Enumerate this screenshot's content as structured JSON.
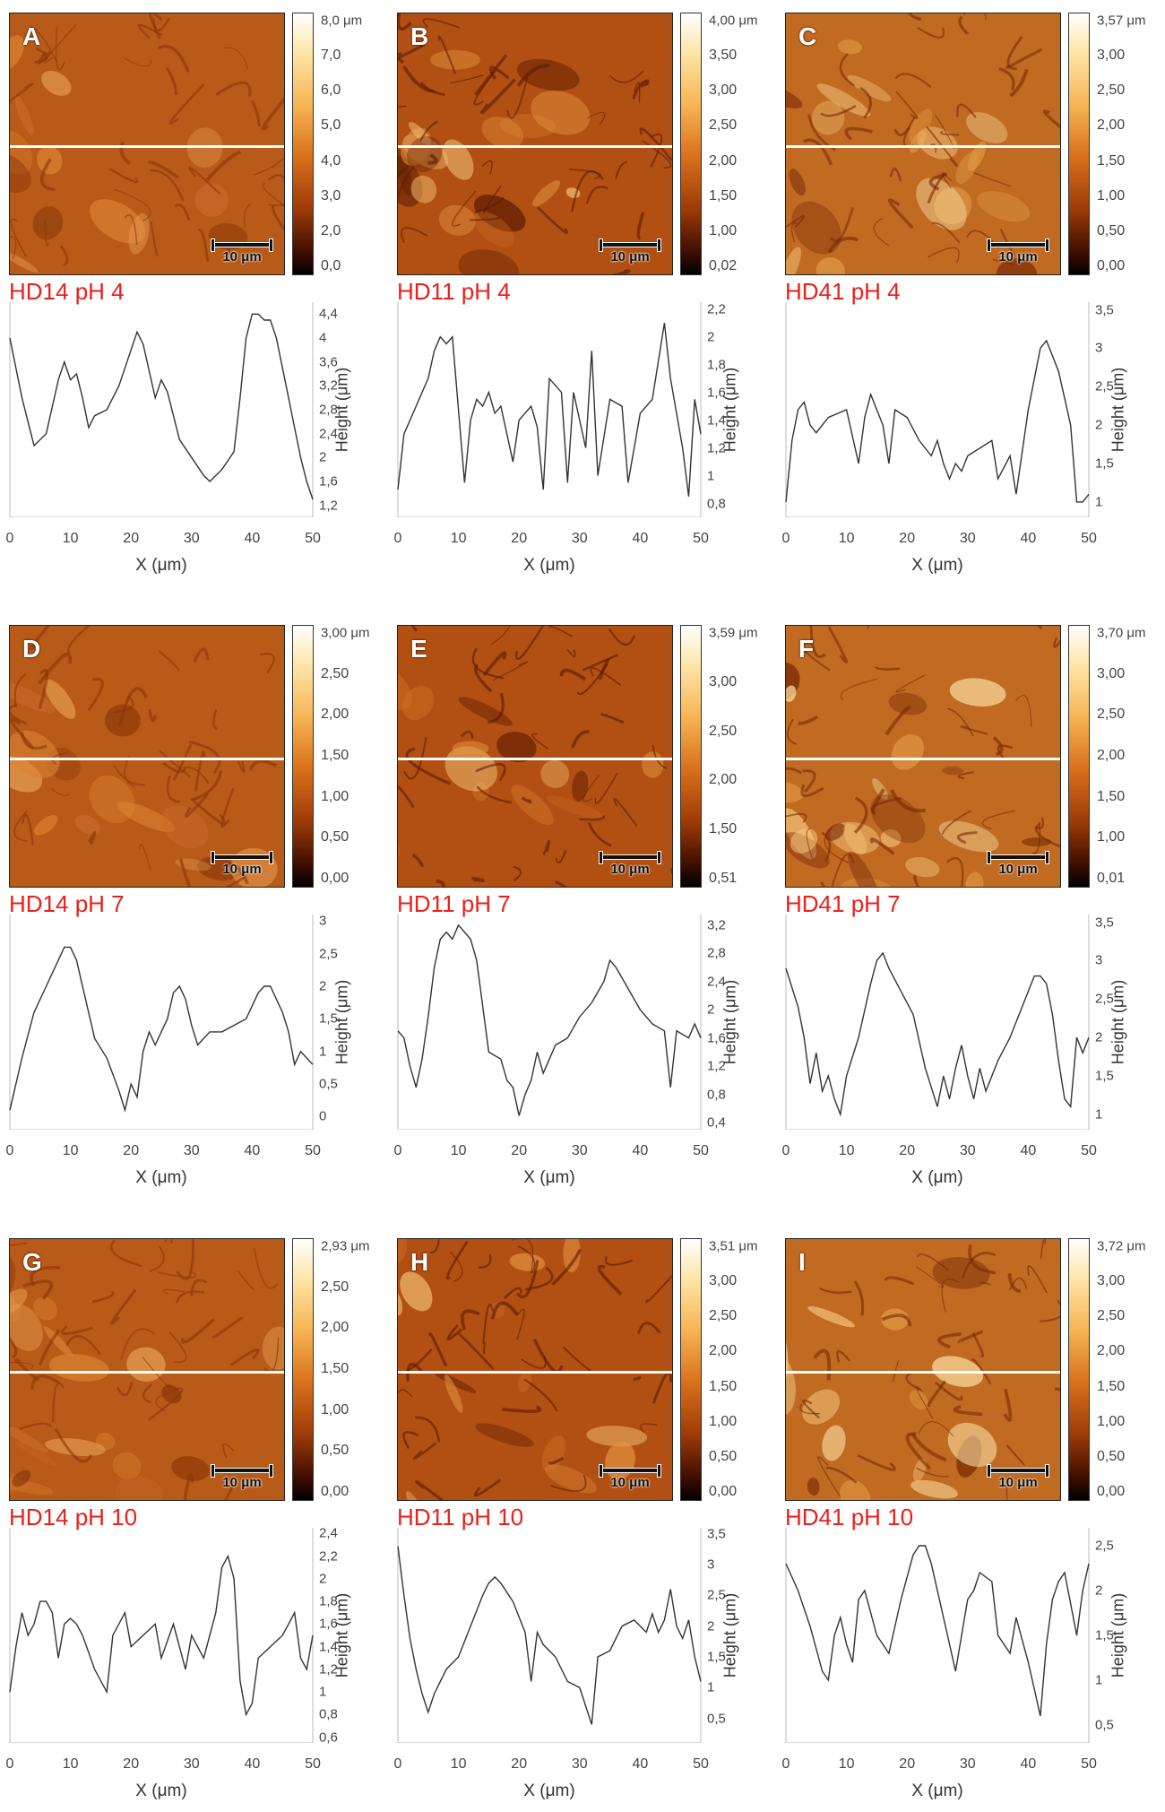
{
  "figure": {
    "scale_bar_label": "10 μm",
    "xlabel": "X (μm)",
    "ylabel": "Height (μm)",
    "x_ticks": [
      "0",
      "10",
      "20",
      "30",
      "40",
      "50"
    ]
  },
  "chart_data": [
    {
      "type": "line",
      "letter": "A",
      "title": "HD14 pH 4",
      "cbar": [
        "8,0 μm",
        "7,0",
        "6,0",
        "5,0",
        "4,0",
        "3,0",
        "2,0",
        "0,0"
      ],
      "yticks": [
        "4,4",
        "4",
        "3,6",
        "3,2",
        "2,8",
        "2,4",
        "2",
        "1,6",
        "1,2"
      ],
      "ylim": [
        1.0,
        4.6
      ],
      "x": [
        0,
        2,
        4,
        6,
        8,
        9,
        10,
        11,
        12,
        13,
        14,
        16,
        18,
        20,
        21,
        22,
        24,
        25,
        26,
        28,
        30,
        32,
        33,
        35,
        37,
        38,
        39,
        40,
        41,
        42,
        43,
        44,
        45,
        46,
        47,
        48,
        49,
        50
      ],
      "y": [
        4.0,
        3.0,
        2.2,
        2.4,
        3.3,
        3.6,
        3.3,
        3.4,
        3.0,
        2.5,
        2.7,
        2.8,
        3.2,
        3.8,
        4.1,
        3.9,
        3.0,
        3.3,
        3.1,
        2.3,
        2.0,
        1.7,
        1.6,
        1.8,
        2.1,
        3.0,
        4.0,
        4.4,
        4.4,
        4.3,
        4.3,
        4.0,
        3.5,
        3.0,
        2.5,
        2.0,
        1.6,
        1.3
      ],
      "xlabel": "X (μm)",
      "ylabel": "Height (μm)"
    },
    {
      "type": "line",
      "letter": "B",
      "title": "HD11 pH 4",
      "cbar": [
        "4,00 μm",
        "3,50",
        "3,00",
        "2,50",
        "2,00",
        "1,50",
        "1,00",
        "0,02"
      ],
      "yticks": [
        "2,2",
        "2",
        "1,8",
        "1,6",
        "1,4",
        "1,2",
        "1",
        "0,8"
      ],
      "ylim": [
        0.7,
        2.25
      ],
      "x": [
        0,
        1,
        3,
        4,
        5,
        6,
        7,
        8,
        9,
        11,
        12,
        13,
        14,
        15,
        16,
        17,
        19,
        20,
        22,
        23,
        24,
        25,
        27,
        28,
        29,
        31,
        32,
        33,
        35,
        37,
        38,
        40,
        42,
        44,
        45,
        47,
        48,
        49,
        50
      ],
      "y": [
        0.9,
        1.3,
        1.5,
        1.6,
        1.7,
        1.9,
        2.0,
        1.95,
        2.0,
        0.95,
        1.4,
        1.55,
        1.5,
        1.6,
        1.45,
        1.5,
        1.1,
        1.4,
        1.5,
        1.35,
        0.9,
        1.7,
        1.6,
        0.95,
        1.6,
        1.2,
        1.9,
        1.0,
        1.55,
        1.5,
        0.95,
        1.45,
        1.55,
        2.1,
        1.7,
        1.2,
        0.85,
        1.55,
        1.3
      ],
      "xlabel": "X (μm)",
      "ylabel": "Height (μm)"
    },
    {
      "type": "line",
      "letter": "C",
      "title": "HD41 pH 4",
      "cbar": [
        "3,57 μm",
        "3,00",
        "2,50",
        "2,00",
        "1,50",
        "1,00",
        "0,50",
        "0,00"
      ],
      "yticks": [
        "3,5",
        "3",
        "2,5",
        "2",
        "1,5",
        "1"
      ],
      "ylim": [
        0.8,
        3.6
      ],
      "x": [
        0,
        1,
        2,
        3,
        4,
        5,
        7,
        10,
        12,
        13,
        14,
        16,
        17,
        18,
        20,
        22,
        24,
        25,
        26,
        27,
        28,
        29,
        30,
        32,
        34,
        35,
        37,
        38,
        40,
        42,
        43,
        45,
        47,
        48,
        49,
        50
      ],
      "y": [
        1.0,
        1.8,
        2.2,
        2.3,
        2.0,
        1.9,
        2.1,
        2.2,
        1.5,
        2.1,
        2.4,
        2.0,
        1.5,
        2.2,
        2.1,
        1.8,
        1.6,
        1.8,
        1.5,
        1.3,
        1.5,
        1.4,
        1.6,
        1.7,
        1.8,
        1.3,
        1.6,
        1.1,
        2.2,
        3.0,
        3.1,
        2.7,
        2.0,
        1.0,
        1.0,
        1.1
      ],
      "xlabel": "X (μm)",
      "ylabel": "Height (μm)"
    },
    {
      "type": "line",
      "letter": "D",
      "title": "HD14 pH 7",
      "cbar": [
        "3,00 μm",
        "2,50",
        "2,00",
        "1,50",
        "1,00",
        "0,50",
        "0,00"
      ],
      "yticks": [
        "3",
        "2,5",
        "2",
        "1,5",
        "1",
        "0,5",
        "0"
      ],
      "ylim": [
        -0.2,
        3.1
      ],
      "x": [
        0,
        2,
        4,
        6,
        8,
        9,
        10,
        11,
        12,
        14,
        16,
        18,
        19,
        20,
        21,
        22,
        23,
        24,
        26,
        27,
        28,
        29,
        30,
        31,
        33,
        35,
        37,
        39,
        41,
        42,
        43,
        45,
        46,
        47,
        48,
        49,
        50
      ],
      "y": [
        0.1,
        0.9,
        1.6,
        2.0,
        2.4,
        2.6,
        2.6,
        2.4,
        2.0,
        1.2,
        0.9,
        0.4,
        0.1,
        0.5,
        0.3,
        1.0,
        1.3,
        1.1,
        1.5,
        1.9,
        2.0,
        1.8,
        1.4,
        1.1,
        1.3,
        1.3,
        1.4,
        1.5,
        1.9,
        2.0,
        2.0,
        1.6,
        1.3,
        0.8,
        1.0,
        0.9,
        0.8
      ],
      "xlabel": "X (μm)",
      "ylabel": "Height (μm)"
    },
    {
      "type": "line",
      "letter": "E",
      "title": "HD11 pH 7",
      "cbar": [
        "3,59 μm",
        "3,00",
        "2,50",
        "2,00",
        "1,50",
        "0,51"
      ],
      "yticks": [
        "3,2",
        "2,8",
        "2,4",
        "2",
        "1,6",
        "1,2",
        "0,8",
        "0,4"
      ],
      "ylim": [
        0.3,
        3.35
      ],
      "x": [
        0,
        1,
        2,
        3,
        4,
        5,
        6,
        7,
        8,
        9,
        10,
        11,
        12,
        13,
        15,
        17,
        18,
        19,
        20,
        21,
        22,
        23,
        24,
        26,
        28,
        30,
        32,
        34,
        35,
        36,
        38,
        40,
        42,
        44,
        45,
        46,
        48,
        49,
        50
      ],
      "y": [
        1.7,
        1.6,
        1.2,
        0.9,
        1.3,
        1.9,
        2.6,
        3.0,
        3.1,
        3.0,
        3.2,
        3.1,
        3.0,
        2.7,
        1.4,
        1.3,
        1.0,
        0.9,
        0.5,
        0.8,
        1.0,
        1.4,
        1.1,
        1.5,
        1.6,
        1.9,
        2.1,
        2.4,
        2.7,
        2.6,
        2.3,
        2.0,
        1.8,
        1.7,
        0.9,
        1.7,
        1.6,
        1.8,
        1.6
      ],
      "xlabel": "X (μm)",
      "ylabel": "Height (μm)"
    },
    {
      "type": "line",
      "letter": "F",
      "title": "HD41 pH 7",
      "cbar": [
        "3,70 μm",
        "3,00",
        "2,50",
        "2,00",
        "1,50",
        "1,00",
        "0,01"
      ],
      "yticks": [
        "3,5",
        "3",
        "2,5",
        "2",
        "1,5",
        "1"
      ],
      "ylim": [
        0.8,
        3.6
      ],
      "x": [
        0,
        2,
        3,
        4,
        5,
        6,
        7,
        8,
        9,
        10,
        12,
        14,
        15,
        16,
        17,
        19,
        21,
        23,
        25,
        26,
        27,
        28,
        29,
        30,
        31,
        32,
        33,
        35,
        37,
        39,
        41,
        42,
        43,
        44,
        45,
        46,
        47,
        48,
        49,
        50
      ],
      "y": [
        2.9,
        2.4,
        2.0,
        1.4,
        1.8,
        1.3,
        1.5,
        1.2,
        1.0,
        1.5,
        2.0,
        2.7,
        3.0,
        3.1,
        2.9,
        2.6,
        2.3,
        1.6,
        1.1,
        1.5,
        1.2,
        1.6,
        1.9,
        1.5,
        1.2,
        1.6,
        1.3,
        1.7,
        2.0,
        2.4,
        2.8,
        2.8,
        2.7,
        2.3,
        1.7,
        1.2,
        1.1,
        2.0,
        1.8,
        2.0
      ],
      "xlabel": "X (μm)",
      "ylabel": "Height (μm)"
    },
    {
      "type": "line",
      "letter": "G",
      "title": "HD14 pH 10",
      "cbar": [
        "2,93 μm",
        "2,50",
        "2,00",
        "1,50",
        "1,00",
        "0,50",
        "0,00"
      ],
      "yticks": [
        "2,4",
        "2,2",
        "2",
        "1,8",
        "1,6",
        "1,4",
        "1,2",
        "1",
        "0,8",
        "0,6"
      ],
      "ylim": [
        0.55,
        2.45
      ],
      "x": [
        0,
        1,
        2,
        3,
        4,
        5,
        6,
        7,
        8,
        9,
        10,
        11,
        12,
        14,
        16,
        17,
        19,
        20,
        22,
        24,
        25,
        27,
        29,
        30,
        32,
        34,
        35,
        36,
        37,
        38,
        39,
        40,
        41,
        43,
        45,
        46,
        47,
        48,
        49,
        50
      ],
      "y": [
        1.0,
        1.4,
        1.7,
        1.5,
        1.6,
        1.8,
        1.8,
        1.7,
        1.3,
        1.6,
        1.65,
        1.6,
        1.5,
        1.2,
        1.0,
        1.5,
        1.7,
        1.4,
        1.5,
        1.6,
        1.3,
        1.6,
        1.2,
        1.5,
        1.3,
        1.7,
        2.1,
        2.2,
        2.0,
        1.1,
        0.8,
        0.9,
        1.3,
        1.4,
        1.5,
        1.6,
        1.7,
        1.3,
        1.2,
        1.5
      ],
      "xlabel": "X (μm)",
      "ylabel": "Height (μm)"
    },
    {
      "type": "line",
      "letter": "H",
      "title": "HD11 pH 10",
      "cbar": [
        "3,51 μm",
        "3,00",
        "2,50",
        "2,00",
        "1,50",
        "1,00",
        "0,50",
        "0,00"
      ],
      "yticks": [
        "3,5",
        "3",
        "2,5",
        "2",
        "1,5",
        "1",
        "0,5"
      ],
      "ylim": [
        0.1,
        3.6
      ],
      "x": [
        0,
        1,
        2,
        3,
        4,
        5,
        6,
        8,
        10,
        12,
        14,
        15,
        16,
        17,
        19,
        21,
        22,
        23,
        24,
        26,
        28,
        30,
        31,
        32,
        33,
        35,
        37,
        39,
        41,
        42,
        43,
        44,
        45,
        46,
        47,
        48,
        49,
        50
      ],
      "y": [
        3.3,
        2.5,
        1.8,
        1.3,
        0.9,
        0.6,
        0.9,
        1.3,
        1.5,
        2.0,
        2.5,
        2.7,
        2.8,
        2.7,
        2.4,
        1.9,
        1.1,
        1.9,
        1.7,
        1.5,
        1.1,
        1.0,
        0.7,
        0.4,
        1.5,
        1.6,
        2.0,
        2.1,
        1.9,
        2.2,
        1.9,
        2.1,
        2.6,
        2.0,
        1.8,
        2.1,
        1.5,
        1.1
      ],
      "xlabel": "X (μm)",
      "ylabel": "Height (μm)"
    },
    {
      "type": "line",
      "letter": "I",
      "title": "HD41 pH 10",
      "cbar": [
        "3,72 μm",
        "3,00",
        "2,50",
        "2,00",
        "1,50",
        "1,00",
        "0,50",
        "0,00"
      ],
      "yticks": [
        "2,5",
        "2",
        "1,5",
        "1",
        "0,5"
      ],
      "ylim": [
        0.3,
        2.7
      ],
      "x": [
        0,
        2,
        4,
        6,
        7,
        8,
        9,
        10,
        11,
        12,
        13,
        15,
        17,
        19,
        21,
        22,
        23,
        24,
        26,
        28,
        29,
        30,
        31,
        32,
        34,
        35,
        37,
        38,
        40,
        41,
        42,
        43,
        44,
        45,
        46,
        48,
        49,
        50
      ],
      "y": [
        2.3,
        2.0,
        1.6,
        1.1,
        1.0,
        1.5,
        1.7,
        1.4,
        1.2,
        1.9,
        2.0,
        1.5,
        1.3,
        1.9,
        2.4,
        2.5,
        2.5,
        2.3,
        1.7,
        1.1,
        1.5,
        1.9,
        2.0,
        2.2,
        2.1,
        1.5,
        1.3,
        1.7,
        1.2,
        0.9,
        0.6,
        1.4,
        1.9,
        2.1,
        2.2,
        1.5,
        2.0,
        2.3
      ],
      "xlabel": "X (μm)",
      "ylabel": "Height (μm)"
    }
  ]
}
